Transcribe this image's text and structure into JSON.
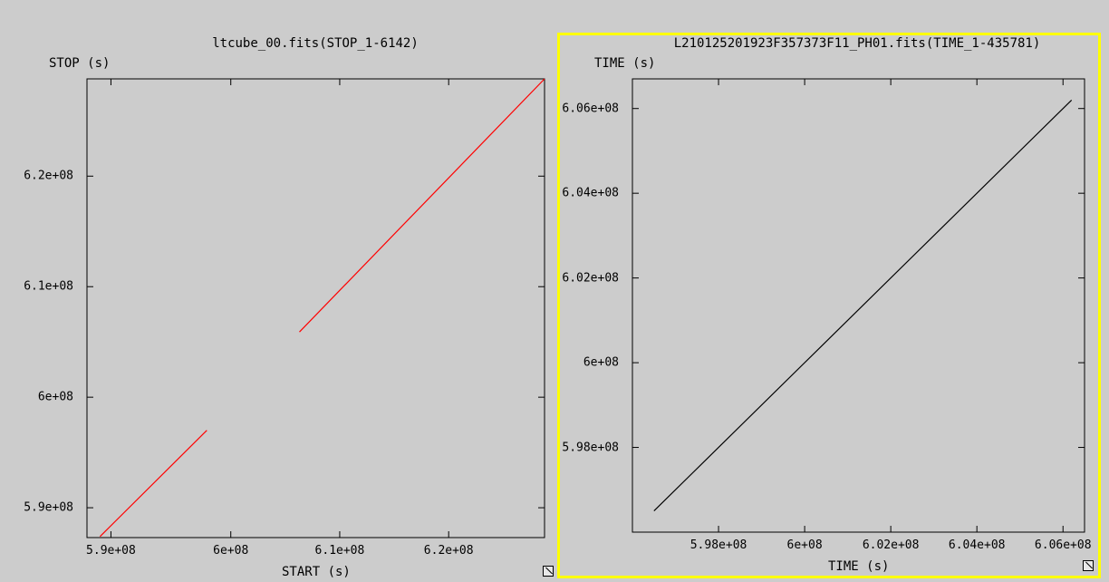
{
  "chart_data": [
    {
      "type": "line",
      "title": "ltcube_00.fits(STOP_1-6142)",
      "xlabel": "START (s)",
      "ylabel": "STOP (s)",
      "xlim": [
        586800000,
        628800000
      ],
      "ylim": [
        587300000,
        628800000
      ],
      "xticks": [
        {
          "value": 589000000,
          "label": "5.9e+08"
        },
        {
          "value": 600000000,
          "label": "6e+08"
        },
        {
          "value": 610000000,
          "label": "6.1e+08"
        },
        {
          "value": 620000000,
          "label": "6.2e+08"
        }
      ],
      "yticks": [
        {
          "value": 590000000,
          "label": "5.9e+08"
        },
        {
          "value": 600000000,
          "label": "6e+08"
        },
        {
          "value": 610000000,
          "label": "6.1e+08"
        },
        {
          "value": 620000000,
          "label": "6.2e+08"
        }
      ],
      "series": [
        {
          "color": "#ff0000",
          "segments": [
            [
              [
                588000000,
                587400000
              ],
              [
                597800000,
                597000000
              ]
            ],
            [
              [
                606300000,
                605900000
              ],
              [
                628800000,
                628800000
              ]
            ]
          ]
        }
      ]
    },
    {
      "type": "line",
      "title": "L210125201923F357373F11_PH01.fits(TIME_1-435781)",
      "xlabel": "TIME (s)",
      "ylabel": "TIME (s)",
      "xlim": [
        596000000,
        606500000
      ],
      "ylim": [
        596000000,
        606700000
      ],
      "xticks": [
        {
          "value": 598000000,
          "label": "5.98e+08"
        },
        {
          "value": 600000000,
          "label": "6e+08"
        },
        {
          "value": 602000000,
          "label": "6.02e+08"
        },
        {
          "value": 604000000,
          "label": "6.04e+08"
        },
        {
          "value": 606000000,
          "label": "6.06e+08"
        }
      ],
      "yticks": [
        {
          "value": 598000000,
          "label": "5.98e+08"
        },
        {
          "value": 600000000,
          "label": "6e+08"
        },
        {
          "value": 602000000,
          "label": "6.02e+08"
        },
        {
          "value": 604000000,
          "label": "6.04e+08"
        },
        {
          "value": 606000000,
          "label": "6.06e+08"
        }
      ],
      "series": [
        {
          "color": "#000000",
          "segments": [
            [
              [
                596500000,
                596500000
              ],
              [
                606200000,
                606200000
              ]
            ]
          ]
        }
      ]
    }
  ],
  "panels": [
    {
      "title": "ltcube_00.fits(STOP_1-6142)",
      "xlabel": "START (s)",
      "ylabel": "STOP (s)",
      "resize_icon": "resize-corner-icon"
    },
    {
      "title": "L210125201923F357373F11_PH01.fits(TIME_1-435781)",
      "xlabel": "TIME (s)",
      "ylabel": "TIME (s)",
      "resize_icon": "resize-corner-icon"
    }
  ],
  "colors": {
    "background": "#cccccc",
    "focus_border": "#ffff00",
    "left_series": "#ff0000",
    "right_series": "#000000"
  }
}
